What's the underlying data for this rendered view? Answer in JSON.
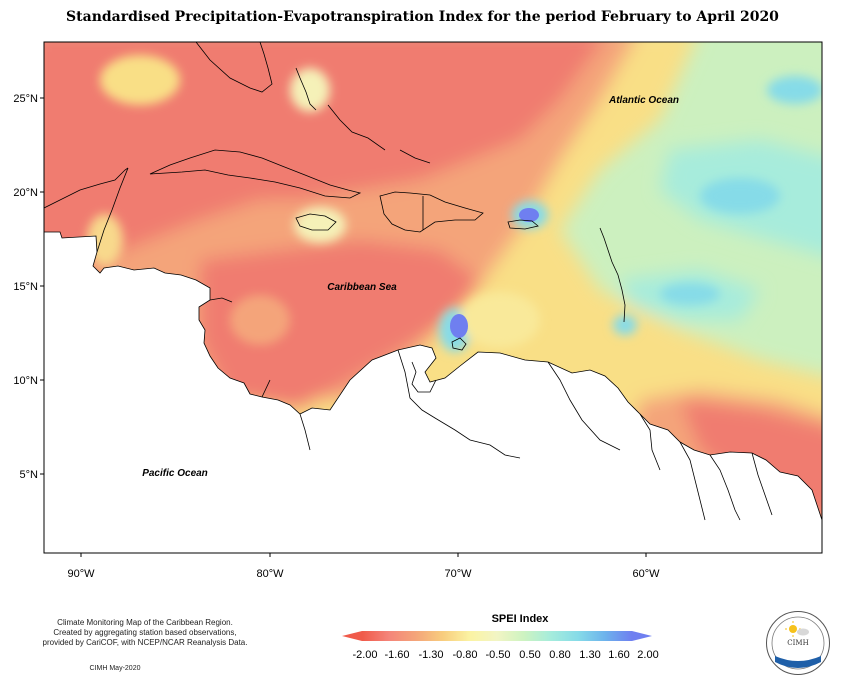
{
  "title": "Standardised Precipitation-Evapotranspiration Index for the period February to April 2020",
  "map": {
    "latitude_labels": [
      "25°N",
      "20°N",
      "15°N",
      "10°N",
      "5°N"
    ],
    "longitude_labels": [
      "90°W",
      "80°W",
      "70°W",
      "60°W"
    ],
    "region_labels": {
      "atlantic": "Atlantic Ocean",
      "caribbean": "Caribbean Sea",
      "pacific": "Pacific Ocean"
    }
  },
  "legend": {
    "title": "SPEI Index",
    "values": [
      "-2.00",
      "-1.60",
      "-1.30",
      "-0.80",
      "-0.50",
      "0.50",
      "0.80",
      "1.30",
      "1.60",
      "2.00"
    ],
    "colors": [
      "#f05a4a",
      "#f4857a",
      "#f4a57a",
      "#f8cd7e",
      "#fbf3a3",
      "#f2f5c4",
      "#cdf3c1",
      "#a5ecdc",
      "#86dbe8",
      "#6db3ec",
      "#6f7ff0"
    ]
  },
  "credits": {
    "line1": "Climate Monitoring Map of the Caribbean Region.",
    "line2": "Created by aggregating station based observations,",
    "line3": "provided by CariCOF, with NCEP/NCAR Reanalysis Data.",
    "date": "CIMH May-2020"
  },
  "logo": {
    "name": "CIMH"
  }
}
